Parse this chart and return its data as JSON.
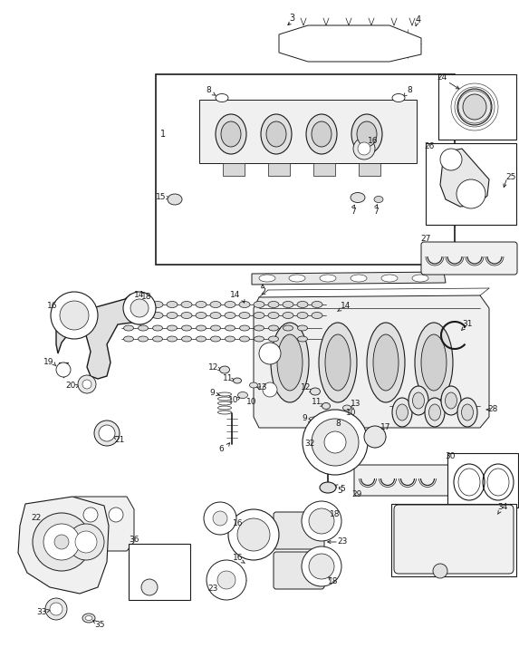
{
  "bg_color": "#ffffff",
  "line_color": "#1a1a1a",
  "figsize": [
    5.73,
    7.36
  ],
  "dpi": 100,
  "lw": 0.7
}
